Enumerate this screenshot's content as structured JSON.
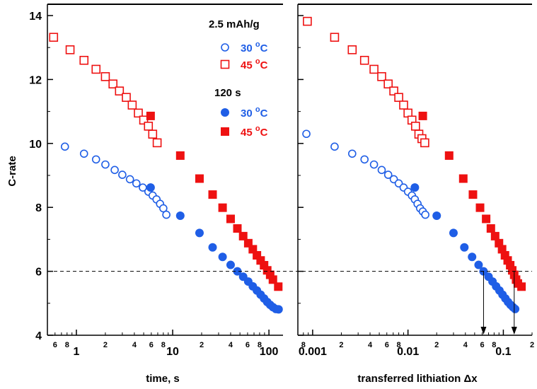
{
  "chart_data": [
    {
      "type": "scatter",
      "x_scale": "log",
      "xlim": [
        0.5,
        140
      ],
      "ylim": [
        4,
        14.4
      ],
      "ylabel": "C-rate",
      "xlabel": "time, s",
      "x_major_ticks": [
        {
          "value": 1,
          "label": "1"
        },
        {
          "value": 10,
          "label": "10"
        },
        {
          "value": 100,
          "label": "100"
        }
      ],
      "x_minor_ticks": [
        {
          "value": 6,
          "label": "6"
        },
        {
          "value": 8,
          "label": "8"
        },
        {
          "value": 2,
          "label": "2"
        },
        {
          "value": 4,
          "label": "4"
        },
        {
          "value": 6,
          "label": "6"
        },
        {
          "value": 8,
          "label": "8"
        },
        {
          "value": 2,
          "label": "2"
        },
        {
          "value": 4,
          "label": "4"
        },
        {
          "value": 6,
          "label": "6"
        },
        {
          "value": 8,
          "label": "8"
        }
      ],
      "x_minor_positions": [
        0.6,
        0.8,
        2,
        4,
        6,
        8,
        20,
        40,
        60,
        80
      ],
      "y_ticks": [
        {
          "value": 4,
          "label": "4"
        },
        {
          "value": 6,
          "label": "6"
        },
        {
          "value": 8,
          "label": "8"
        },
        {
          "value": 10,
          "label": "10"
        },
        {
          "value": 12,
          "label": "12"
        },
        {
          "value": 14,
          "label": "14"
        }
      ],
      "reference_line": 6,
      "series": [
        {
          "group": "2.5 mAh/g",
          "name": "30 °C",
          "marker": "open-circle",
          "color": "#1f5ee6",
          "x": [
            0.76,
            1.2,
            1.6,
            2.0,
            2.5,
            3.0,
            3.6,
            4.2,
            4.9,
            5.6,
            6.2,
            6.8,
            7.4,
            8.0,
            8.6
          ],
          "y": [
            9.9,
            9.68,
            9.5,
            9.34,
            9.17,
            9.02,
            8.88,
            8.75,
            8.62,
            8.49,
            8.37,
            8.25,
            8.11,
            7.97,
            7.77
          ]
        },
        {
          "group": "2.5 mAh/g",
          "name": "45 °C",
          "marker": "open-square",
          "color": "#ee1111",
          "x": [
            0.58,
            0.86,
            1.2,
            1.6,
            2.0,
            2.4,
            2.8,
            3.3,
            3.8,
            4.4,
            5.0,
            5.6,
            6.2,
            6.9
          ],
          "y": [
            13.32,
            12.93,
            12.6,
            12.32,
            12.09,
            11.86,
            11.64,
            11.44,
            11.2,
            10.95,
            10.73,
            10.54,
            10.29,
            10.02
          ]
        },
        {
          "group": "120 s",
          "name": "30 °C",
          "marker": "filled-circle",
          "color": "#1f5ee6",
          "x": [
            5.9,
            12,
            19,
            26,
            33,
            40,
            47,
            54,
            61,
            68,
            75,
            82,
            89,
            96,
            103,
            110,
            118,
            126
          ],
          "y": [
            8.62,
            7.74,
            7.2,
            6.75,
            6.45,
            6.2,
            6.0,
            5.83,
            5.68,
            5.53,
            5.4,
            5.27,
            5.15,
            5.04,
            4.95,
            4.88,
            4.82,
            4.81
          ]
        },
        {
          "group": "120 s",
          "name": "45 °C",
          "marker": "filled-square",
          "color": "#ee1111",
          "x": [
            5.9,
            12,
            19,
            26,
            33,
            40,
            47,
            54,
            61,
            68,
            75,
            82,
            89,
            96,
            103,
            110,
            125
          ],
          "y": [
            10.86,
            9.62,
            8.9,
            8.4,
            7.99,
            7.64,
            7.34,
            7.1,
            6.88,
            6.69,
            6.5,
            6.34,
            6.19,
            6.03,
            5.89,
            5.74,
            5.52
          ]
        }
      ]
    },
    {
      "type": "scatter",
      "x_scale": "log",
      "xlim": [
        0.0007,
        0.2
      ],
      "ylim": [
        4,
        14.4
      ],
      "xlabel": "transferred lithiation Δx",
      "x_major_ticks": [
        {
          "value": 0.001,
          "label": "0.001"
        },
        {
          "value": 0.01,
          "label": "0.01"
        },
        {
          "value": 0.1,
          "label": "0.1"
        }
      ],
      "x_minor_ticks": [
        {
          "value": 8,
          "label": "8"
        },
        {
          "value": 2,
          "label": "2"
        },
        {
          "value": 4,
          "label": "4"
        },
        {
          "value": 6,
          "label": "6"
        },
        {
          "value": 8,
          "label": "8"
        },
        {
          "value": 2,
          "label": "2"
        },
        {
          "value": 4,
          "label": "4"
        },
        {
          "value": 6,
          "label": "6"
        },
        {
          "value": 8,
          "label": "8"
        },
        {
          "value": 2,
          "label": "2"
        }
      ],
      "x_minor_positions": [
        0.0008,
        0.002,
        0.004,
        0.006,
        0.008,
        0.02,
        0.04,
        0.06,
        0.08,
        0.2
      ],
      "reference_line": 6,
      "arrows_at_x": [
        0.062,
        0.13
      ],
      "series": [
        {
          "group": "2.5 mAh/g",
          "name": "30 °C",
          "marker": "open-circle",
          "color": "#1f5ee6",
          "x": [
            0.00086,
            0.0017,
            0.0026,
            0.0035,
            0.0044,
            0.0053,
            0.0062,
            0.0071,
            0.008,
            0.009,
            0.01,
            0.011,
            0.0118,
            0.0126,
            0.0134,
            0.0143,
            0.0152
          ],
          "y": [
            10.3,
            9.9,
            9.68,
            9.5,
            9.34,
            9.17,
            9.02,
            8.88,
            8.75,
            8.62,
            8.49,
            8.37,
            8.25,
            8.11,
            7.97,
            7.87,
            7.77
          ]
        },
        {
          "group": "2.5 mAh/g",
          "name": "45 °C",
          "marker": "open-square",
          "color": "#ee1111",
          "x": [
            0.00088,
            0.0017,
            0.0026,
            0.0035,
            0.0044,
            0.0053,
            0.0062,
            0.0071,
            0.008,
            0.009,
            0.01,
            0.011,
            0.012,
            0.013,
            0.014,
            0.015
          ],
          "y": [
            13.82,
            13.32,
            12.93,
            12.6,
            12.32,
            12.09,
            11.86,
            11.64,
            11.44,
            11.2,
            10.95,
            10.73,
            10.54,
            10.29,
            10.15,
            10.02
          ]
        },
        {
          "group": "120 s",
          "name": "30 °C",
          "marker": "filled-circle",
          "color": "#1f5ee6",
          "x": [
            0.0118,
            0.02,
            0.03,
            0.039,
            0.047,
            0.055,
            0.062,
            0.07,
            0.077,
            0.084,
            0.091,
            0.098,
            0.105,
            0.112,
            0.119,
            0.126,
            0.133
          ],
          "y": [
            8.62,
            7.74,
            7.2,
            6.75,
            6.45,
            6.2,
            6.0,
            5.83,
            5.68,
            5.53,
            5.4,
            5.27,
            5.15,
            5.04,
            4.95,
            4.88,
            4.82
          ]
        },
        {
          "group": "120 s",
          "name": "45 °C",
          "marker": "filled-square",
          "color": "#ee1111",
          "x": [
            0.0143,
            0.027,
            0.038,
            0.048,
            0.057,
            0.066,
            0.074,
            0.082,
            0.09,
            0.097,
            0.104,
            0.111,
            0.118,
            0.124,
            0.13,
            0.136,
            0.142,
            0.155
          ],
          "y": [
            10.86,
            9.62,
            8.9,
            8.4,
            7.99,
            7.64,
            7.34,
            7.1,
            6.88,
            6.69,
            6.5,
            6.34,
            6.19,
            6.03,
            5.89,
            5.74,
            5.62,
            5.52
          ]
        }
      ]
    }
  ],
  "legend": {
    "group1_title": "2.5 mAh/g",
    "group2_title": "120 s",
    "entries": [
      {
        "marker": "open-circle",
        "label_base": "30 ",
        "label_sup": "o",
        "label_unit": "C",
        "color": "#1f5ee6"
      },
      {
        "marker": "open-square",
        "label_base": "45 ",
        "label_sup": "o",
        "label_unit": "C",
        "color": "#ee1111"
      },
      {
        "marker": "filled-circle",
        "label_base": "30 ",
        "label_sup": "o",
        "label_unit": "C",
        "color": "#1f5ee6"
      },
      {
        "marker": "filled-square",
        "label_base": "45 ",
        "label_sup": "o",
        "label_unit": "C",
        "color": "#ee1111"
      }
    ]
  }
}
